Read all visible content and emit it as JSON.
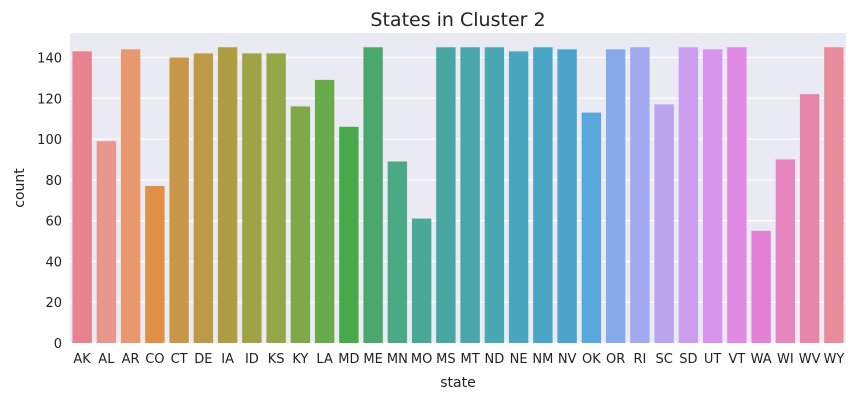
{
  "chart_data": {
    "type": "bar",
    "title": "States in Cluster 2",
    "xlabel": "state",
    "ylabel": "count",
    "ylim": [
      0,
      152
    ],
    "yticks": [
      0,
      20,
      40,
      60,
      80,
      100,
      120,
      140
    ],
    "grid": true,
    "categories": [
      "AK",
      "AL",
      "AR",
      "CO",
      "CT",
      "DE",
      "IA",
      "ID",
      "KS",
      "KY",
      "LA",
      "MD",
      "ME",
      "MN",
      "MO",
      "MS",
      "MT",
      "ND",
      "NE",
      "NM",
      "NV",
      "OK",
      "OR",
      "RI",
      "SC",
      "SD",
      "UT",
      "VT",
      "WA",
      "WI",
      "WV",
      "WY"
    ],
    "values": [
      143,
      99,
      144,
      77,
      140,
      142,
      145,
      142,
      142,
      116,
      129,
      106,
      145,
      89,
      61,
      145,
      145,
      145,
      143,
      145,
      144,
      113,
      144,
      145,
      117,
      145,
      144,
      145,
      55,
      90,
      122,
      145
    ],
    "colors": [
      "#e8828f",
      "#e9968e",
      "#e8986e",
      "#e08f46",
      "#c8974a",
      "#bd9a48",
      "#ae9d43",
      "#a0a345",
      "#95a646",
      "#7ea84a",
      "#69aa4a",
      "#49a94a",
      "#4ba86c",
      "#4ba986",
      "#4aa996",
      "#48a7a2",
      "#49a6aa",
      "#4aa7b4",
      "#4aa6be",
      "#4ba5c5",
      "#4ca4cc",
      "#58a8de",
      "#87aaeb",
      "#a3a9ee",
      "#bba4ee",
      "#cc9cee",
      "#d894ee",
      "#e08ae6",
      "#e37fd4",
      "#e685c0",
      "#e786aa",
      "#e88c9c"
    ],
    "background": "#eaeaf2"
  }
}
